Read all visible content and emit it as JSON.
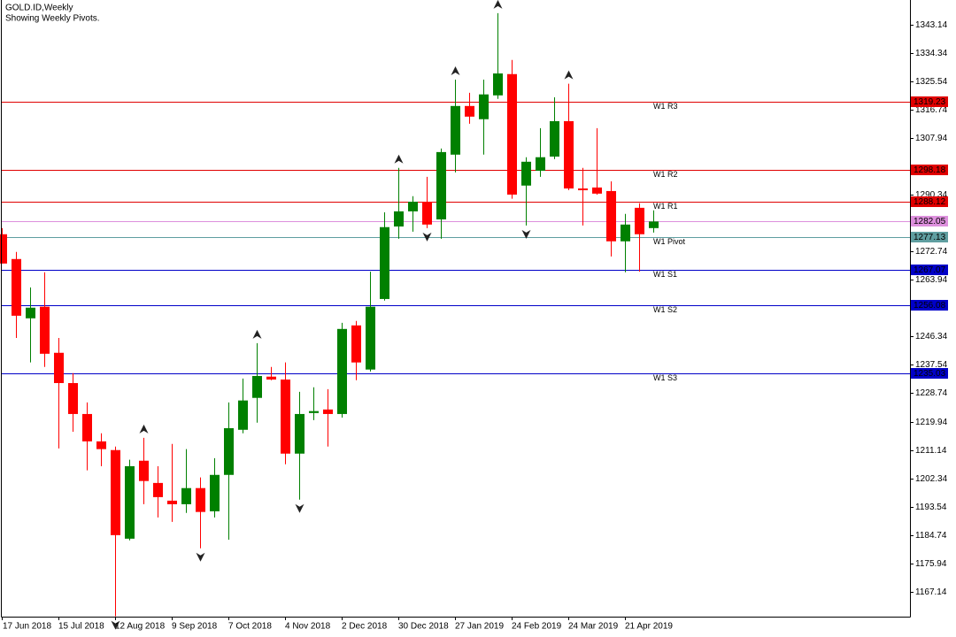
{
  "chart_data": {
    "type": "candlestick",
    "title": "GOLD.ID,Weekly",
    "subtitle": "Showing Weekly Pivots.",
    "categories": [
      "17 Jun 2018",
      null,
      null,
      null,
      "15 Jul 2018",
      null,
      null,
      null,
      "12 Aug 2018",
      null,
      null,
      null,
      "9 Sep 2018",
      null,
      null,
      null,
      "7 Oct 2018",
      null,
      null,
      null,
      "4 Nov 2018",
      null,
      null,
      null,
      "2 Dec 2018",
      null,
      null,
      null,
      "30 Dec 2018",
      null,
      null,
      null,
      "27 Jan 2019",
      null,
      null,
      null,
      "24 Feb 2019",
      null,
      null,
      null,
      "24 Mar 2019",
      null,
      null,
      null,
      "21 Apr 2019",
      null,
      null
    ],
    "open": [
      1278.1,
      1270.4,
      1252.0,
      1255.6,
      1241.3,
      1231.9,
      1222.3,
      1213.8,
      1211.1,
      1183.6,
      1207.8,
      1200.9,
      1195.4,
      1194.3,
      1199.3,
      1192.1,
      1203.4,
      1217.4,
      1227.3,
      1233.9,
      1233.0,
      1210.0,
      1222.6,
      1223.7,
      1222.3,
      1249.8,
      1236.1,
      1258.0,
      1280.5,
      1285.2,
      1288.2,
      1282.7,
      1302.8,
      1317.9,
      1313.8,
      1321.2,
      1327.8,
      1293.2,
      1297.8,
      1302.2,
      1313.2,
      1292.3,
      1292.6,
      1291.5,
      1275.9,
      1286.3,
      1280.0
    ],
    "high": [
      1280.0,
      1272.6,
      1261.6,
      1266.3,
      1245.9,
      1235.0,
      1225.9,
      1216.3,
      1212.2,
      1208.1,
      1214.9,
      1206.1,
      1213.0,
      1211.4,
      1202.6,
      1208.6,
      1225.9,
      1233.3,
      1244.3,
      1236.9,
      1238.3,
      1229.2,
      1230.6,
      1230.0,
      1250.6,
      1251.2,
      1266.5,
      1284.9,
      1298.7,
      1289.9,
      1295.9,
      1304.7,
      1326.1,
      1322.0,
      1326.1,
      1346.7,
      1332.2,
      1302.0,
      1311.0,
      1320.6,
      1324.8,
      1298.7,
      1311.0,
      1294.5,
      1284.4,
      1287.7,
      1285.5
    ],
    "low": [
      1269.0,
      1245.9,
      1238.3,
      1236.9,
      1211.6,
      1216.8,
      1204.8,
      1206.1,
      1159.5,
      1183.1,
      1194.3,
      1190.2,
      1188.8,
      1191.6,
      1180.6,
      1190.2,
      1183.3,
      1216.3,
      1219.6,
      1232.8,
      1206.7,
      1195.7,
      1220.4,
      1212.2,
      1221.2,
      1232.8,
      1235.5,
      1257.5,
      1276.7,
      1278.9,
      1280.0,
      1276.7,
      1297.3,
      1312.4,
      1302.8,
      1320.1,
      1289.1,
      1280.8,
      1295.9,
      1301.4,
      1291.8,
      1280.8,
      1290.4,
      1271.2,
      1266.3,
      1266.5,
      1278.6
    ],
    "close": [
      1269.0,
      1252.8,
      1255.3,
      1241.0,
      1231.9,
      1222.3,
      1213.8,
      1211.4,
      1184.7,
      1206.1,
      1201.5,
      1196.5,
      1194.3,
      1199.3,
      1191.9,
      1203.4,
      1217.9,
      1226.5,
      1234.1,
      1233.0,
      1210.0,
      1222.3,
      1223.2,
      1222.3,
      1248.7,
      1238.3,
      1255.6,
      1280.3,
      1285.2,
      1288.2,
      1281.1,
      1303.6,
      1317.9,
      1314.6,
      1321.5,
      1328.0,
      1290.4,
      1300.6,
      1302.0,
      1313.2,
      1292.3,
      1291.8,
      1290.7,
      1275.9,
      1281.1,
      1278.1,
      1282.05
    ],
    "up_color": "#008000",
    "down_color": "#ff0000",
    "fractals_up": [
      10,
      18,
      28,
      32,
      35,
      40
    ],
    "fractals_down": [
      8,
      14,
      21,
      30,
      37
    ],
    "ylim": [
      1159.4,
      1350.8
    ],
    "yticks": [
      1343.14,
      1334.34,
      1325.54,
      1316.74,
      1307.94,
      1290.34,
      1272.74,
      1263.94,
      1255.14,
      1246.34,
      1237.54,
      1228.74,
      1219.94,
      1211.14,
      1202.34,
      1193.54,
      1184.74,
      1175.94,
      1167.14
    ],
    "levels": [
      {
        "name": "W1 R3",
        "value": 1319.23,
        "color": "#e00000"
      },
      {
        "name": "W1 R2",
        "value": 1298.18,
        "color": "#e00000"
      },
      {
        "name": "W1 R1",
        "value": 1288.12,
        "color": "#e00000"
      },
      {
        "name": "W1 Pivot",
        "value": 1277.13,
        "color": "#5f9ea0"
      },
      {
        "name": "W1 S1",
        "value": 1267.07,
        "color": "#0000c8"
      },
      {
        "name": "W1 S2",
        "value": 1256.08,
        "color": "#0000c8"
      },
      {
        "name": "W1 S3",
        "value": 1235.03,
        "color": "#0000c8"
      }
    ],
    "current_price": {
      "value": 1282.05,
      "color": "#dd90dd"
    }
  }
}
